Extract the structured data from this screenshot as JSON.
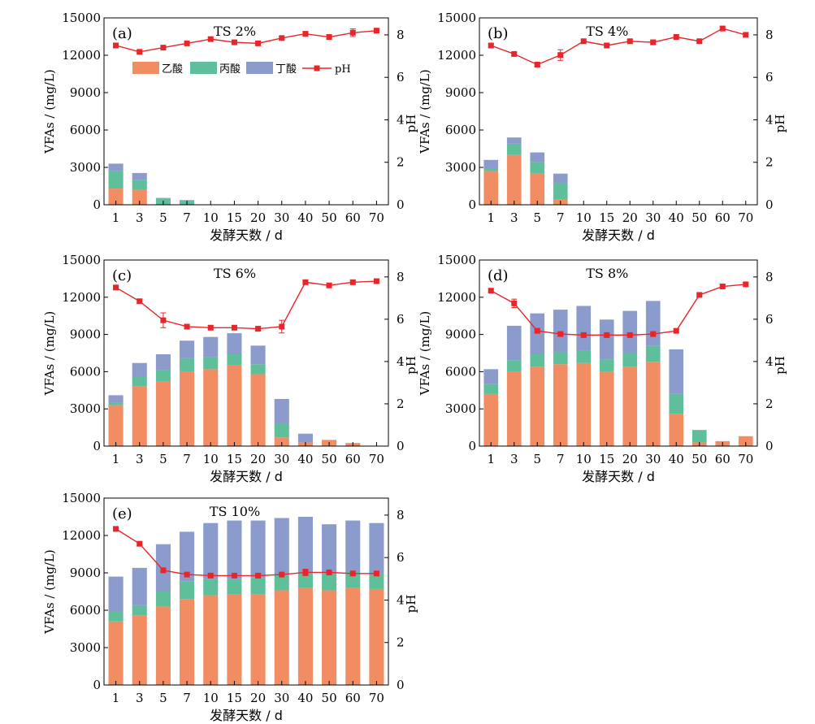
{
  "figure": {
    "categories": [
      "1",
      "3",
      "5",
      "7",
      "10",
      "15",
      "20",
      "30",
      "40",
      "50",
      "60",
      "70"
    ],
    "left_axis_label": "VFAs / (mg/L)",
    "right_axis_label": "pH",
    "x_axis_label": "发酵天数 / d",
    "legend": {
      "acetic": "乙酸",
      "propionic": "丙酸",
      "butyric": "丁酸",
      "ph": "pH"
    },
    "colors": {
      "acetic": "#f28c63",
      "propionic": "#5fbf9a",
      "butyric": "#8b9bcb",
      "ph": "#e8262a"
    }
  },
  "chart_data": [
    {
      "type": "bar",
      "stacked": true,
      "secondary_line": "pH",
      "panel_label": "(a)",
      "title": "TS 2%",
      "categories": [
        "1",
        "3",
        "5",
        "7",
        "10",
        "15",
        "20",
        "30",
        "40",
        "50",
        "60",
        "70"
      ],
      "ylim": [
        0,
        15000
      ],
      "yticks": [
        0,
        3000,
        6000,
        9000,
        12000,
        15000
      ],
      "y2lim": [
        0,
        8.8
      ],
      "y2ticks": [
        0,
        2,
        4,
        6,
        8
      ],
      "legend_position": "top-left inside",
      "series": [
        {
          "name": "乙酸",
          "values": [
            1300,
            1200,
            0,
            0,
            0,
            0,
            0,
            0,
            0,
            0,
            0,
            0
          ]
        },
        {
          "name": "丙酸",
          "values": [
            1400,
            800,
            500,
            350,
            0,
            0,
            0,
            0,
            0,
            0,
            0,
            0
          ]
        },
        {
          "name": "丁酸",
          "values": [
            600,
            550,
            50,
            30,
            0,
            0,
            0,
            0,
            0,
            0,
            0,
            0
          ]
        }
      ],
      "ph": [
        7.5,
        7.2,
        7.4,
        7.6,
        7.8,
        7.65,
        7.6,
        7.85,
        8.05,
        7.9,
        8.1,
        8.2
      ],
      "ph_error": [
        0.08,
        0.05,
        0.05,
        0.05,
        0.08,
        0.05,
        0.05,
        0.05,
        0.08,
        0.08,
        0.18,
        0.08
      ]
    },
    {
      "type": "bar",
      "stacked": true,
      "secondary_line": "pH",
      "panel_label": "(b)",
      "title": "TS 4%",
      "categories": [
        "1",
        "3",
        "5",
        "7",
        "10",
        "15",
        "20",
        "30",
        "40",
        "50",
        "60",
        "70"
      ],
      "ylim": [
        0,
        15000
      ],
      "yticks": [
        0,
        3000,
        6000,
        9000,
        12000,
        15000
      ],
      "y2lim": [
        0,
        8.8
      ],
      "y2ticks": [
        0,
        2,
        4,
        6,
        8
      ],
      "series": [
        {
          "name": "乙酸",
          "values": [
            2700,
            4000,
            2500,
            400,
            0,
            0,
            0,
            0,
            0,
            0,
            0,
            0
          ]
        },
        {
          "name": "丙酸",
          "values": [
            200,
            900,
            900,
            1300,
            0,
            0,
            0,
            0,
            0,
            0,
            0,
            0
          ]
        },
        {
          "name": "丁酸",
          "values": [
            700,
            500,
            800,
            800,
            0,
            0,
            0,
            0,
            0,
            0,
            0,
            0
          ]
        }
      ],
      "ph": [
        7.5,
        7.1,
        6.6,
        7.05,
        7.7,
        7.5,
        7.7,
        7.65,
        7.9,
        7.7,
        8.3,
        8.0
      ],
      "ph_error": [
        0.08,
        0.08,
        0.08,
        0.25,
        0.08,
        0.08,
        0.08,
        0.08,
        0.08,
        0.08,
        0.08,
        0.08
      ]
    },
    {
      "type": "bar",
      "stacked": true,
      "secondary_line": "pH",
      "panel_label": "(c)",
      "title": "TS 6%",
      "categories": [
        "1",
        "3",
        "5",
        "7",
        "10",
        "15",
        "20",
        "30",
        "40",
        "50",
        "60",
        "70"
      ],
      "ylim": [
        0,
        15000
      ],
      "yticks": [
        0,
        3000,
        6000,
        9000,
        12000,
        15000
      ],
      "y2lim": [
        0,
        8.8
      ],
      "y2ticks": [
        0,
        2,
        4,
        6,
        8
      ],
      "series": [
        {
          "name": "乙酸",
          "values": [
            3300,
            4800,
            5200,
            6000,
            6200,
            6500,
            5800,
            700,
            300,
            500,
            250,
            0
          ]
        },
        {
          "name": "丙酸",
          "values": [
            200,
            800,
            900,
            1100,
            1000,
            900,
            800,
            1100,
            0,
            0,
            0,
            0
          ]
        },
        {
          "name": "丁酸",
          "values": [
            600,
            1100,
            1300,
            1400,
            1600,
            1700,
            1500,
            2000,
            700,
            0,
            0,
            0
          ]
        }
      ],
      "ph": [
        7.5,
        6.85,
        5.95,
        5.65,
        5.6,
        5.6,
        5.55,
        5.65,
        7.75,
        7.6,
        7.75,
        7.8
      ],
      "ph_error": [
        0.08,
        0.1,
        0.35,
        0.1,
        0.1,
        0.1,
        0.1,
        0.3,
        0.1,
        0.1,
        0.1,
        0.1
      ]
    },
    {
      "type": "bar",
      "stacked": true,
      "secondary_line": "pH",
      "panel_label": "(d)",
      "title": "TS 8%",
      "categories": [
        "1",
        "3",
        "5",
        "7",
        "10",
        "15",
        "20",
        "30",
        "40",
        "50",
        "60",
        "70"
      ],
      "ylim": [
        0,
        15000
      ],
      "yticks": [
        0,
        3000,
        6000,
        9000,
        12000,
        15000
      ],
      "y2lim": [
        0,
        8.8
      ],
      "y2ticks": [
        0,
        2,
        4,
        6,
        8
      ],
      "series": [
        {
          "name": "乙酸",
          "values": [
            4200,
            6000,
            6400,
            6600,
            6700,
            6000,
            6400,
            6800,
            2600,
            300,
            400,
            800
          ]
        },
        {
          "name": "丙酸",
          "values": [
            800,
            900,
            1000,
            1000,
            1000,
            1000,
            1100,
            1300,
            1600,
            1000,
            0,
            0
          ]
        },
        {
          "name": "丁酸",
          "values": [
            1200,
            2800,
            3300,
            3400,
            3600,
            3200,
            3400,
            3600,
            3600,
            0,
            0,
            0
          ]
        }
      ],
      "ph": [
        7.35,
        6.75,
        5.45,
        5.3,
        5.25,
        5.25,
        5.25,
        5.3,
        5.45,
        7.15,
        7.55,
        7.65
      ],
      "ph_error": [
        0.08,
        0.2,
        0.08,
        0.08,
        0.08,
        0.08,
        0.08,
        0.08,
        0.08,
        0.08,
        0.08,
        0.08
      ]
    },
    {
      "type": "bar",
      "stacked": true,
      "secondary_line": "pH",
      "panel_label": "(e)",
      "title": "TS 10%",
      "categories": [
        "1",
        "3",
        "5",
        "7",
        "10",
        "15",
        "20",
        "30",
        "40",
        "50",
        "60",
        "70"
      ],
      "ylim": [
        0,
        15000
      ],
      "yticks": [
        0,
        3000,
        6000,
        9000,
        12000,
        15000
      ],
      "y2lim": [
        0,
        8.8
      ],
      "y2ticks": [
        0,
        2,
        4,
        6,
        8
      ],
      "series": [
        {
          "name": "乙酸",
          "values": [
            5100,
            5600,
            6300,
            6900,
            7200,
            7300,
            7300,
            7600,
            7800,
            7600,
            7800,
            7700
          ]
        },
        {
          "name": "丙酸",
          "values": [
            800,
            800,
            1200,
            1400,
            1300,
            1200,
            1300,
            1300,
            1200,
            1300,
            1300,
            1300
          ]
        },
        {
          "name": "丁酸",
          "values": [
            2800,
            3000,
            3800,
            4000,
            4500,
            4700,
            4600,
            4500,
            4500,
            4000,
            4100,
            4000
          ]
        }
      ],
      "ph": [
        7.35,
        6.65,
        5.4,
        5.2,
        5.15,
        5.15,
        5.15,
        5.2,
        5.3,
        5.3,
        5.25,
        5.25
      ],
      "ph_error": [
        0.08,
        0.08,
        0.08,
        0.08,
        0.08,
        0.08,
        0.08,
        0.08,
        0.15,
        0.08,
        0.08,
        0.08
      ]
    }
  ]
}
